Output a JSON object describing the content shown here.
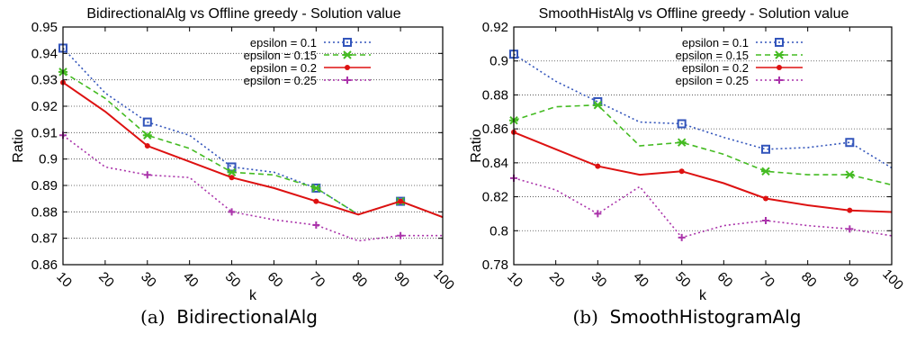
{
  "chart_data": [
    {
      "type": "line",
      "title": "BidirectionalAlg vs Offline greedy - Solution value",
      "xlabel": "k",
      "ylabel": "Ratio",
      "xlim": [
        10,
        100
      ],
      "ylim": [
        0.86,
        0.95
      ],
      "xticks": [
        "10",
        "20",
        "30",
        "40",
        "50",
        "60",
        "70",
        "80",
        "90",
        "100"
      ],
      "yticks": [
        "0.86",
        "0.87",
        "0.88",
        "0.89",
        "0.9",
        "0.91",
        "0.92",
        "0.93",
        "0.94",
        "0.95"
      ],
      "grid": true,
      "legend_position": "top-right",
      "x": [
        10,
        20,
        30,
        40,
        50,
        60,
        70,
        80,
        90,
        100
      ],
      "series": [
        {
          "name": "epsilon = 0.1",
          "color": "#3355bb",
          "dash": "dot",
          "marker": "square",
          "values": [
            0.942,
            0.925,
            0.914,
            0.909,
            0.897,
            0.895,
            0.889,
            0.879,
            0.884,
            0.878
          ]
        },
        {
          "name": "epsilon = 0.15",
          "color": "#44bb22",
          "dash": "dash",
          "marker": "x",
          "values": [
            0.933,
            0.923,
            0.909,
            0.904,
            0.895,
            0.894,
            0.889,
            0.879,
            0.884,
            0.878
          ]
        },
        {
          "name": "epsilon = 0.2",
          "color": "#dd1111",
          "dash": "solid",
          "marker": "dot",
          "values": [
            0.929,
            0.918,
            0.905,
            0.899,
            0.893,
            0.889,
            0.884,
            0.879,
            0.884,
            0.878
          ]
        },
        {
          "name": "epsilon = 0.25",
          "color": "#aa33aa",
          "dash": "dot",
          "marker": "plus",
          "values": [
            0.909,
            0.897,
            0.894,
            0.893,
            0.88,
            0.877,
            0.875,
            0.869,
            0.871,
            0.871
          ]
        }
      ],
      "caption_label": "(a)",
      "caption_name": "BidirectionalAlg"
    },
    {
      "type": "line",
      "title": "SmoothHistAlg vs Offline greedy - Solution value",
      "xlabel": "k",
      "ylabel": "Ratio",
      "xlim": [
        10,
        100
      ],
      "ylim": [
        0.78,
        0.92
      ],
      "xticks": [
        "10",
        "20",
        "30",
        "40",
        "50",
        "60",
        "70",
        "80",
        "90",
        "100"
      ],
      "yticks": [
        "0.78",
        "0.8",
        "0.82",
        "0.84",
        "0.86",
        "0.88",
        "0.9",
        "0.92"
      ],
      "grid": true,
      "legend_position": "top-right",
      "x": [
        10,
        20,
        30,
        40,
        50,
        60,
        70,
        80,
        90,
        100
      ],
      "series": [
        {
          "name": "epsilon = 0.1",
          "color": "#3355bb",
          "dash": "dot",
          "marker": "square",
          "values": [
            0.904,
            0.888,
            0.876,
            0.864,
            0.863,
            0.855,
            0.848,
            0.849,
            0.852,
            0.837
          ]
        },
        {
          "name": "epsilon = 0.15",
          "color": "#44bb22",
          "dash": "dash",
          "marker": "x",
          "values": [
            0.865,
            0.873,
            0.874,
            0.85,
            0.852,
            0.845,
            0.835,
            0.833,
            0.833,
            0.827
          ]
        },
        {
          "name": "epsilon = 0.2",
          "color": "#dd1111",
          "dash": "solid",
          "marker": "dot",
          "values": [
            0.858,
            0.848,
            0.838,
            0.833,
            0.835,
            0.828,
            0.819,
            0.815,
            0.812,
            0.811
          ]
        },
        {
          "name": "epsilon = 0.25",
          "color": "#aa33aa",
          "dash": "dot",
          "marker": "plus",
          "values": [
            0.831,
            0.824,
            0.81,
            0.826,
            0.796,
            0.803,
            0.806,
            0.803,
            0.801,
            0.797
          ]
        }
      ],
      "caption_label": "(b)",
      "caption_name": "SmoothHistogramAlg"
    }
  ]
}
